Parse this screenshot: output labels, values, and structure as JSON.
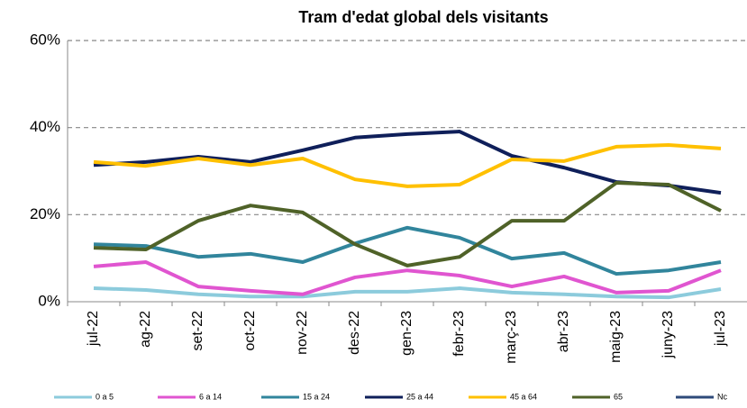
{
  "chart_data": {
    "type": "line",
    "title": "Tram d'edat global dels visitants",
    "categories": [
      "jul-22",
      "ag-22",
      "set-22",
      "oct-22",
      "nov-22",
      "des-22",
      "gen-23",
      "febr-23",
      "març-23",
      "abr-23",
      "maig-23",
      "juny-23",
      "jul-23"
    ],
    "series": [
      {
        "name": "0 a 5",
        "color": "#8ccbdc",
        "values": [
          3.1,
          2.7,
          1.7,
          1.2,
          1.2,
          2.3,
          2.3,
          3.1,
          2.1,
          1.7,
          1.2,
          1.0,
          2.9
        ]
      },
      {
        "name": "6 a 14",
        "color": "#e055d0",
        "values": [
          8.1,
          9.1,
          3.5,
          2.5,
          1.7,
          5.6,
          7.2,
          6.0,
          3.5,
          5.8,
          2.1,
          2.5,
          7.2
        ]
      },
      {
        "name": "15 a 24",
        "color": "#31859c",
        "values": [
          13.2,
          12.8,
          10.3,
          11.0,
          9.1,
          13.4,
          17.0,
          14.7,
          9.9,
          11.2,
          6.4,
          7.2,
          9.1
        ]
      },
      {
        "name": "25 a 44",
        "color": "#0f1f5a",
        "values": [
          31.4,
          32.1,
          33.3,
          32.1,
          34.8,
          37.7,
          38.5,
          39.1,
          33.5,
          30.8,
          27.5,
          26.7,
          25.0
        ]
      },
      {
        "name": "45 a 64",
        "color": "#ffc000",
        "values": [
          32.1,
          31.2,
          32.9,
          31.4,
          32.9,
          28.1,
          26.5,
          26.9,
          32.7,
          32.3,
          35.6,
          36.0,
          35.2
        ]
      },
      {
        "name": "65",
        "color": "#4f6228",
        "values": [
          12.4,
          12.0,
          18.6,
          22.1,
          20.5,
          13.2,
          8.3,
          10.3,
          18.6,
          18.6,
          27.3,
          26.9,
          20.9
        ]
      },
      {
        "name": "Nc",
        "color": "#2e4a7a",
        "values": [
          null,
          null,
          null,
          null,
          null,
          null,
          null,
          null,
          null,
          null,
          null,
          null,
          null
        ]
      }
    ],
    "ylim": [
      0,
      60
    ],
    "yticks": [
      {
        "value": 0,
        "label": "0%"
      },
      {
        "value": 20,
        "label": "20%"
      },
      {
        "value": 40,
        "label": "40%"
      },
      {
        "value": 60,
        "label": "60%"
      }
    ],
    "grid": true,
    "legend": "bottom"
  }
}
